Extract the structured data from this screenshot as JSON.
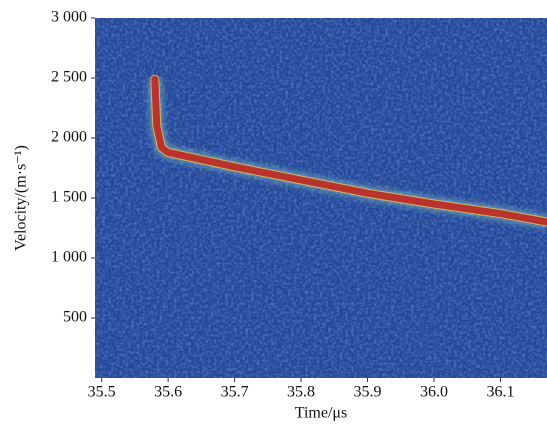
{
  "chart_data": {
    "type": "line",
    "x_label": "Time/μs",
    "y_label": "Velocity/(m·s⁻¹)",
    "x": [
      35.58,
      35.583,
      35.59,
      35.6,
      35.65,
      35.7,
      35.8,
      35.9,
      36.0,
      36.1,
      36.17
    ],
    "series": [
      {
        "color": "#c0302a",
        "values": [
          2490,
          2100,
          1920,
          1880,
          1820,
          1760,
          1650,
          1540,
          1450,
          1370,
          1300
        ]
      }
    ],
    "xlim": [
      35.49,
      36.17
    ],
    "xticks": [
      35.5,
      35.6,
      35.7,
      35.8,
      35.9,
      {
        "value": 36.0,
        "label": "36.0"
      },
      36.1
    ],
    "ylim": [
      0,
      3000
    ],
    "yticks": [
      500,
      {
        "value": 1000,
        "label": "1 000"
      },
      {
        "value": 1500,
        "label": "1 500"
      },
      {
        "value": 2000,
        "label": "2 000"
      },
      {
        "value": 2500,
        "label": "2 500"
      },
      {
        "value": 3000,
        "label": "3 000"
      }
    ],
    "background_color": "#26479a"
  }
}
